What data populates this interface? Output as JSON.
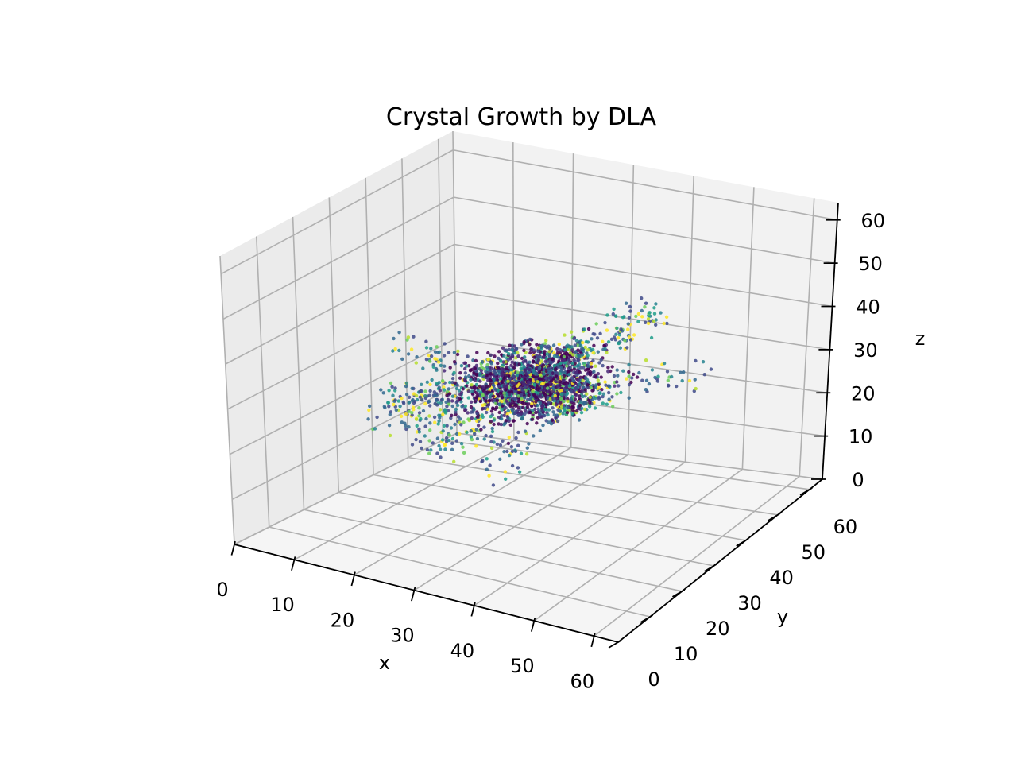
{
  "chart_data": {
    "type": "scatter",
    "projection": "3d",
    "title": "Crystal Growth by DLA",
    "xlabel": "x",
    "ylabel": "y",
    "zlabel": "z",
    "xlim": [
      0,
      64
    ],
    "ylim": [
      0,
      64
    ],
    "zlim": [
      0,
      64
    ],
    "x_ticks": [
      "0",
      "10",
      "20",
      "30",
      "40",
      "50",
      "60"
    ],
    "y_ticks": [
      "0",
      "10",
      "20",
      "30",
      "40",
      "50",
      "60"
    ],
    "z_ticks": [
      "0",
      "10",
      "20",
      "30",
      "40",
      "50",
      "60"
    ],
    "grid": true,
    "colormap": "viridis",
    "colors": {
      "pane_back": "#f2f2f2",
      "pane_side": "#ebebeb",
      "pane_floor": "#f5f5f5",
      "grid": "#b0b0b0"
    },
    "cluster": {
      "description_points": "approx. 3000 particles aggregated around center",
      "center": [
        32,
        32,
        32
      ],
      "points_sample": [
        [
          32,
          32,
          32
        ],
        [
          28,
          30,
          30
        ],
        [
          36,
          34,
          33
        ],
        [
          25,
          35,
          28
        ],
        [
          40,
          28,
          36
        ],
        [
          30,
          40,
          30
        ],
        [
          34,
          24,
          34
        ],
        [
          20,
          30,
          33
        ],
        [
          44,
          36,
          31
        ],
        [
          32,
          44,
          35
        ],
        [
          18,
          42,
          40
        ],
        [
          46,
          26,
          30
        ],
        [
          27,
          22,
          26
        ],
        [
          38,
          42,
          38
        ],
        [
          22,
          26,
          38
        ],
        [
          48,
          38,
          35
        ],
        [
          14,
          36,
          34
        ],
        [
          50,
          30,
          27
        ],
        [
          36,
          48,
          42
        ],
        [
          28,
          18,
          32
        ]
      ]
    }
  }
}
